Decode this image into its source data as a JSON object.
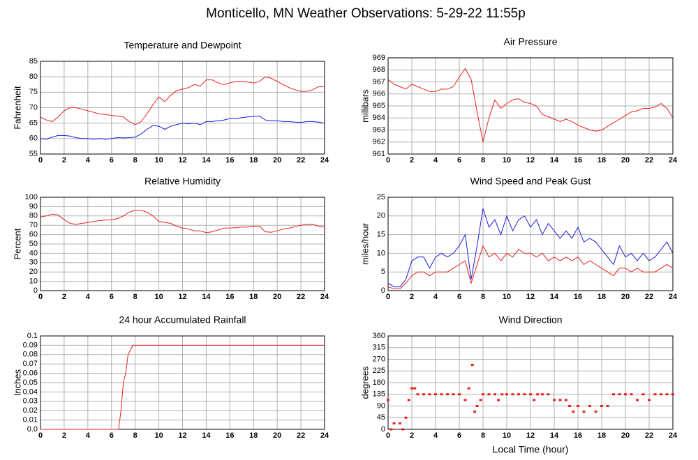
{
  "title": "Monticello, MN Weather Observations: 5-29-22 11:55p",
  "chart_data": [
    {
      "type": "line",
      "title": "Temperature and Dewpoint",
      "ylabel": "Fahrenheit",
      "x": [
        0,
        0.5,
        1,
        1.5,
        2,
        2.5,
        3,
        3.5,
        4,
        4.5,
        5,
        5.5,
        6,
        6.5,
        7,
        7.5,
        8,
        8.5,
        9,
        9.5,
        10,
        10.5,
        11,
        11.5,
        12,
        12.5,
        13,
        13.5,
        14,
        14.5,
        15,
        15.5,
        16,
        16.5,
        17,
        17.5,
        18,
        18.5,
        19,
        19.5,
        20,
        20.5,
        21,
        21.5,
        22,
        22.5,
        23,
        23.5,
        24
      ],
      "series": [
        {
          "name": "Temperature",
          "color": "#e8211d",
          "values": [
            67,
            66,
            65.5,
            67,
            69,
            70,
            70,
            69.5,
            69,
            68.5,
            68,
            67.8,
            67.5,
            67.3,
            67,
            65.5,
            64.5,
            65.5,
            68,
            71,
            73.5,
            72,
            74,
            75.5,
            76,
            76.5,
            77.5,
            77,
            79,
            79,
            78,
            77.5,
            78,
            78.5,
            78.5,
            78.3,
            78,
            78.5,
            80,
            79.5,
            78.5,
            77.5,
            76.5,
            75.8,
            75.3,
            75.3,
            75.8,
            76.8,
            76.8
          ]
        },
        {
          "name": "Dewpoint",
          "color": "#1a1ae0",
          "values": [
            60,
            59.8,
            60.5,
            61,
            61,
            60.8,
            60.3,
            60,
            60,
            59.8,
            60,
            59.8,
            60,
            60.3,
            60.2,
            60.3,
            60.5,
            61.5,
            63,
            64.2,
            64,
            63,
            64,
            64.5,
            65,
            64.8,
            65,
            64.5,
            65.5,
            65.5,
            65.8,
            66,
            66.5,
            66.5,
            66.8,
            67,
            67.2,
            67.3,
            66,
            65.8,
            65.8,
            65.5,
            65.5,
            65.3,
            65.2,
            65.5,
            65.5,
            65.3,
            65
          ]
        }
      ],
      "xlim": [
        0,
        24
      ],
      "xticks": [
        0,
        2,
        4,
        6,
        8,
        10,
        12,
        14,
        16,
        18,
        20,
        22,
        24
      ],
      "ylim": [
        55,
        85
      ],
      "yticks": [
        55,
        60,
        65,
        70,
        75,
        80,
        85
      ],
      "grid": true
    },
    {
      "type": "line",
      "title": "Air Pressure",
      "ylabel": "millibars",
      "x": [
        0,
        0.5,
        1,
        1.5,
        2,
        2.5,
        3,
        3.5,
        4,
        4.5,
        5,
        5.5,
        6,
        6.5,
        7,
        7.5,
        8,
        8.5,
        9,
        9.5,
        10,
        10.5,
        11,
        11.5,
        12,
        12.5,
        13,
        13.5,
        14,
        14.5,
        15,
        15.5,
        16,
        16.5,
        17,
        17.5,
        18,
        18.5,
        19,
        19.5,
        20,
        20.5,
        21,
        21.5,
        22,
        22.5,
        23,
        23.5,
        24
      ],
      "series": [
        {
          "name": "Pressure",
          "color": "#e8211d",
          "values": [
            967.2,
            966.8,
            966.6,
            966.4,
            966.8,
            966.6,
            966.4,
            966.2,
            966.2,
            966.4,
            966.4,
            966.6,
            967.4,
            968.1,
            967.2,
            964.5,
            962,
            964,
            965.5,
            964.8,
            965.2,
            965.5,
            965.6,
            965.3,
            965.2,
            965,
            964.3,
            964.1,
            963.9,
            963.7,
            963.9,
            963.7,
            963.4,
            963.2,
            963,
            962.9,
            963,
            963.3,
            963.6,
            963.9,
            964.2,
            964.5,
            964.6,
            964.8,
            964.8,
            964.9,
            965.2,
            964.8,
            964
          ]
        }
      ],
      "xlim": [
        0,
        24
      ],
      "xticks": [
        0,
        2,
        4,
        6,
        8,
        10,
        12,
        14,
        16,
        18,
        20,
        22,
        24
      ],
      "ylim": [
        961,
        969
      ],
      "yticks": [
        961,
        962,
        963,
        964,
        965,
        966,
        967,
        968,
        969
      ],
      "grid": true
    },
    {
      "type": "line",
      "title": "Relative Humidity",
      "ylabel": "Percent",
      "x": [
        0,
        0.5,
        1,
        1.5,
        2,
        2.5,
        3,
        3.5,
        4,
        4.5,
        5,
        5.5,
        6,
        6.5,
        7,
        7.5,
        8,
        8.5,
        9,
        9.5,
        10,
        10.5,
        11,
        11.5,
        12,
        12.5,
        13,
        13.5,
        14,
        14.5,
        15,
        15.5,
        16,
        16.5,
        17,
        17.5,
        18,
        18.5,
        19,
        19.5,
        20,
        20.5,
        21,
        21.5,
        22,
        22.5,
        23,
        23.5,
        24
      ],
      "series": [
        {
          "name": "Humidity",
          "color": "#e8211d",
          "values": [
            79,
            80,
            82,
            81,
            76,
            72,
            71,
            72,
            73,
            74,
            75,
            75.5,
            76,
            77,
            80,
            84,
            86,
            86,
            84,
            80,
            74,
            73,
            72,
            69,
            67,
            66,
            64,
            64,
            62,
            63,
            65,
            67,
            67,
            67.5,
            68,
            68,
            69,
            69,
            63,
            62.5,
            64,
            66,
            67,
            68.5,
            70,
            71,
            71,
            69,
            68
          ]
        }
      ],
      "xlim": [
        0,
        24
      ],
      "xticks": [
        0,
        2,
        4,
        6,
        8,
        10,
        12,
        14,
        16,
        18,
        20,
        22,
        24
      ],
      "ylim": [
        0,
        100
      ],
      "yticks": [
        0,
        10,
        20,
        30,
        40,
        50,
        60,
        70,
        80,
        90,
        100
      ],
      "grid": true
    },
    {
      "type": "line",
      "title": "Wind Speed and Peak Gust",
      "ylabel": "miles/hour",
      "x": [
        0,
        0.5,
        1,
        1.5,
        2,
        2.5,
        3,
        3.5,
        4,
        4.5,
        5,
        5.5,
        6,
        6.5,
        7,
        7.5,
        8,
        8.5,
        9,
        9.5,
        10,
        10.5,
        11,
        11.5,
        12,
        12.5,
        13,
        13.5,
        14,
        14.5,
        15,
        15.5,
        16,
        16.5,
        17,
        17.5,
        18,
        18.5,
        19,
        19.5,
        20,
        20.5,
        21,
        21.5,
        22,
        22.5,
        23,
        23.5,
        24
      ],
      "series": [
        {
          "name": "Peak Gust",
          "color": "#1a1ae0",
          "values": [
            2,
            1,
            1,
            3,
            8,
            9,
            9,
            6,
            9,
            10,
            9,
            10,
            12,
            15,
            3,
            12,
            22,
            17,
            19,
            15,
            20,
            16,
            19,
            20,
            17,
            19,
            15,
            18,
            16,
            14,
            16,
            14,
            17,
            13,
            14,
            13,
            11,
            9,
            7,
            12,
            9,
            10,
            8,
            10,
            8,
            9,
            11,
            13,
            10
          ]
        },
        {
          "name": "Wind Speed",
          "color": "#e8211d",
          "values": [
            1,
            0.5,
            0.5,
            2,
            4,
            5,
            5,
            4,
            5,
            5,
            5,
            6,
            7,
            8,
            2,
            7,
            12,
            9,
            10,
            8,
            10,
            9,
            11,
            10,
            10,
            9,
            10,
            8,
            9,
            8,
            9,
            8,
            9,
            7,
            8,
            7,
            6,
            5,
            4,
            6,
            6,
            5,
            6,
            5,
            5,
            5,
            6,
            7,
            6
          ]
        }
      ],
      "xlim": [
        0,
        24
      ],
      "xticks": [
        0,
        2,
        4,
        6,
        8,
        10,
        12,
        14,
        16,
        18,
        20,
        22,
        24
      ],
      "ylim": [
        0,
        25
      ],
      "yticks": [
        0,
        5,
        10,
        15,
        20,
        25
      ],
      "grid": true
    },
    {
      "type": "line",
      "title": "24 hour Accumulated Rainfall",
      "ylabel": "Inches",
      "x": [
        0,
        6.6,
        6.8,
        7.0,
        7.2,
        7.4,
        7.6,
        7.8,
        8.0,
        24
      ],
      "series": [
        {
          "name": "Rainfall",
          "color": "#e8211d",
          "values": [
            0,
            0,
            0.02,
            0.05,
            0.06,
            0.08,
            0.085,
            0.09,
            0.09,
            0.09
          ]
        }
      ],
      "xlim": [
        0,
        24
      ],
      "xticks": [
        0,
        2,
        4,
        6,
        8,
        10,
        12,
        14,
        16,
        18,
        20,
        22,
        24
      ],
      "ylim": [
        0,
        0.1
      ],
      "yticks": [
        {
          "value": 0,
          "label": "0.0"
        },
        0.01,
        0.02,
        0.03,
        0.04,
        0.05,
        0.06,
        0.07,
        0.08,
        0.09,
        0.1
      ],
      "grid": true
    },
    {
      "type": "scatter",
      "title": "Wind Direction",
      "ylabel": "degrees",
      "xlabel": "Local Time (hour)",
      "x": [
        0,
        0.25,
        0.5,
        1,
        1.25,
        1.5,
        1.75,
        2,
        2.25,
        2.5,
        3,
        3.5,
        4,
        4.5,
        5,
        5.5,
        6,
        6.5,
        6.8,
        7.1,
        7.3,
        7.5,
        7.8,
        8,
        8.5,
        9,
        9.3,
        9.6,
        10,
        10.5,
        11,
        11.5,
        12,
        12.3,
        12.6,
        13,
        13.5,
        14,
        14.5,
        15,
        15.3,
        15.6,
        16,
        16.5,
        17,
        17.5,
        18,
        18.5,
        19,
        19.5,
        20,
        20.5,
        21,
        21.5,
        22,
        22.5,
        23,
        23.5,
        24
      ],
      "values": [
        113,
        0,
        23,
        23,
        0,
        45,
        113,
        158,
        158,
        135,
        135,
        135,
        135,
        135,
        135,
        135,
        135,
        113,
        158,
        248,
        68,
        90,
        113,
        135,
        135,
        135,
        113,
        135,
        135,
        135,
        135,
        135,
        135,
        113,
        135,
        135,
        135,
        113,
        113,
        113,
        90,
        68,
        90,
        68,
        90,
        68,
        90,
        90,
        135,
        135,
        135,
        135,
        113,
        135,
        113,
        135,
        135,
        135,
        135
      ],
      "color": "#e8211d",
      "xlim": [
        0,
        24
      ],
      "xticks": [
        0,
        2,
        4,
        6,
        8,
        10,
        12,
        14,
        16,
        18,
        20,
        22,
        24
      ],
      "ylim": [
        0,
        360
      ],
      "yticks": [
        0,
        45,
        90,
        135,
        180,
        225,
        270,
        315,
        360
      ],
      "grid": true
    }
  ]
}
